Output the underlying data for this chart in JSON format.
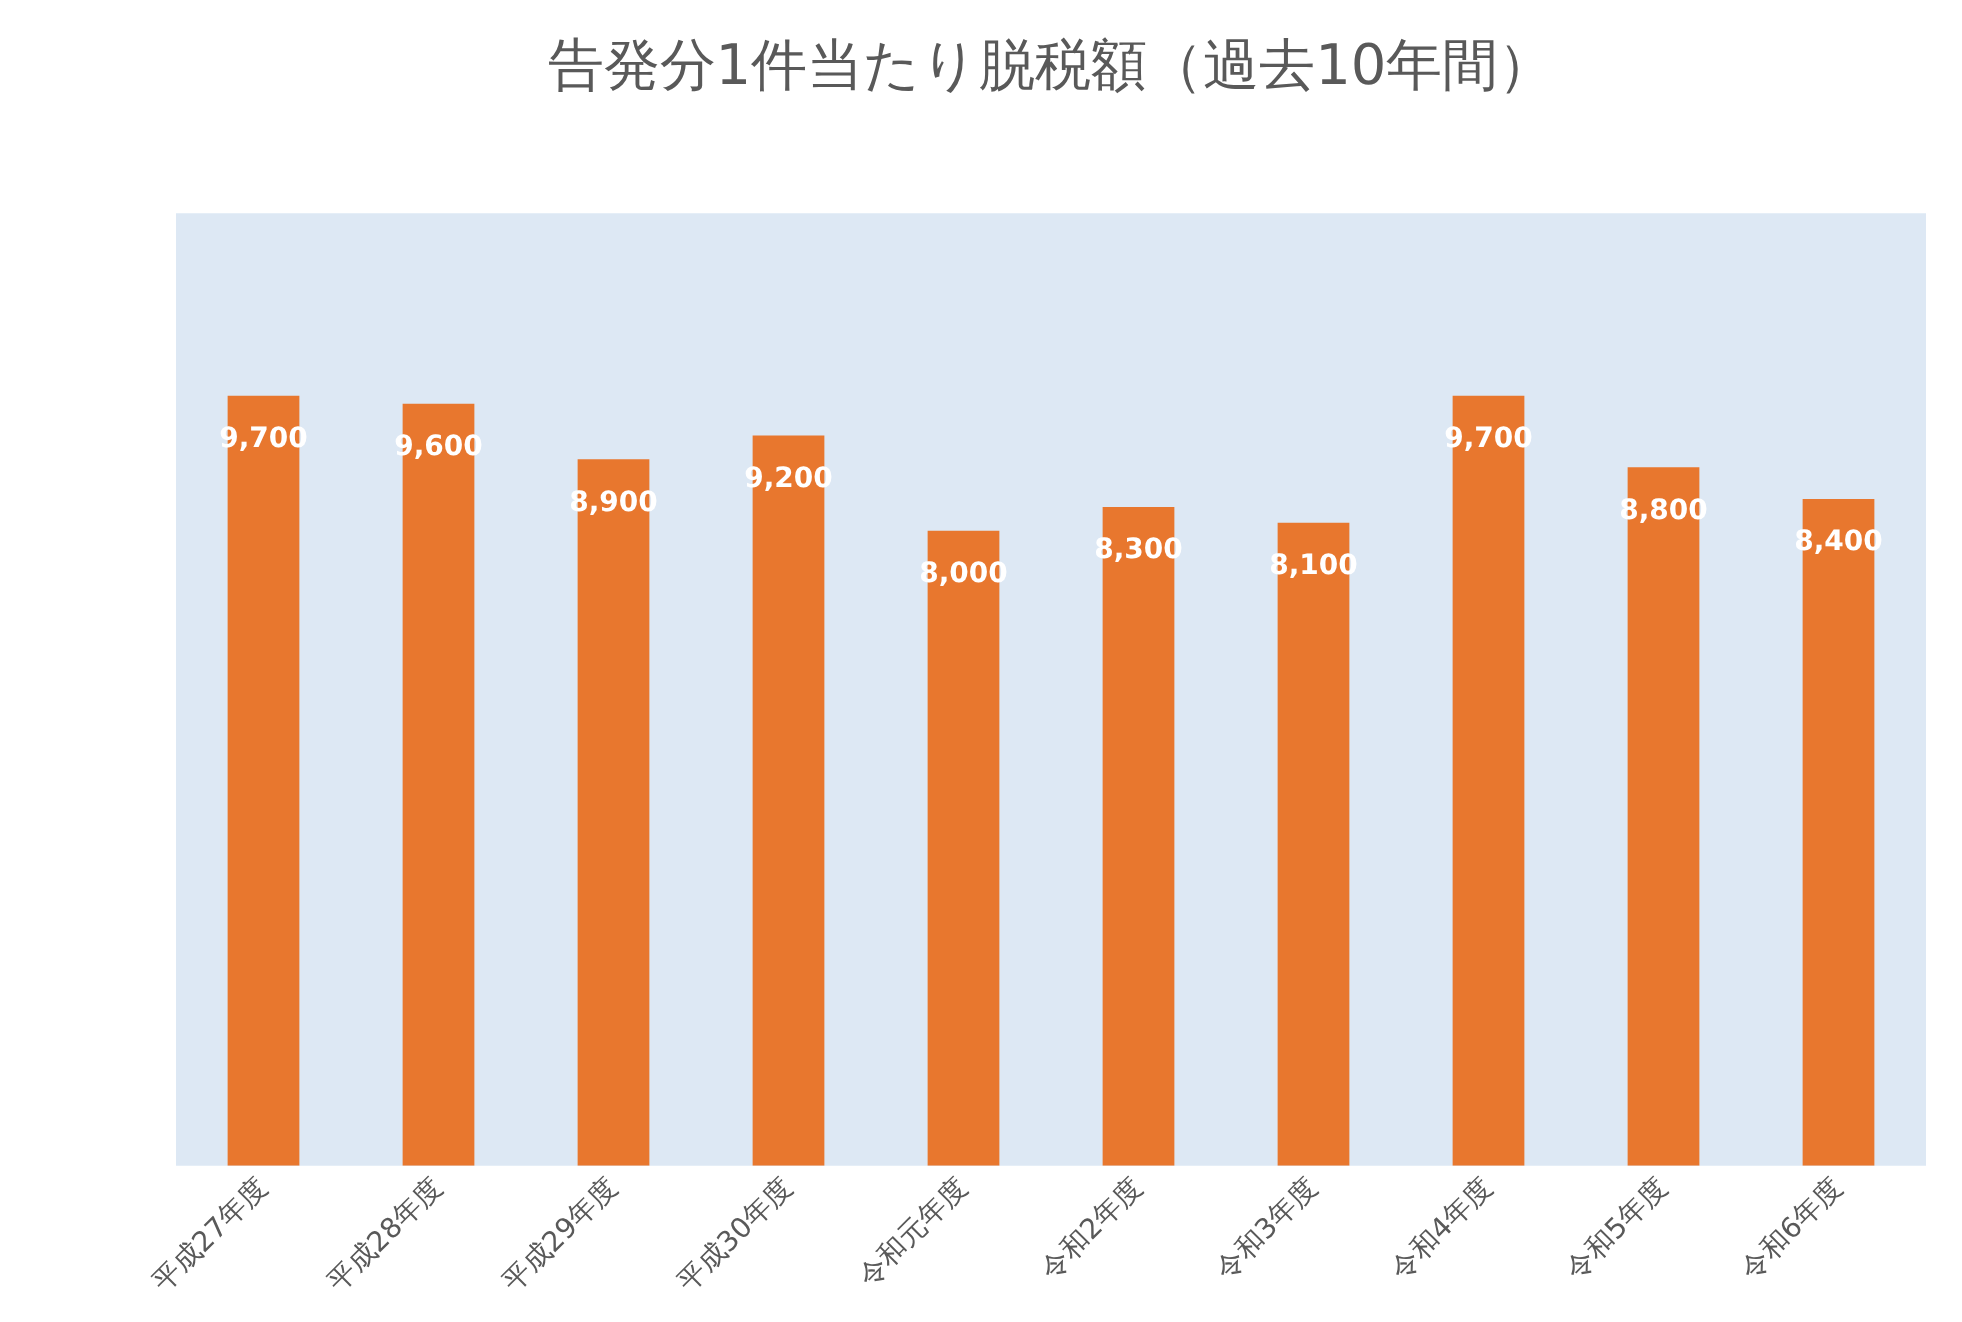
{
  "chart_data": {
    "type": "bar",
    "title": "告発分1件当たり脱税額（過去10年間）",
    "categories": [
      "平成27年度",
      "平成28年度",
      "平成29年度",
      "平成30年度",
      "令和元年度",
      "令和2年度",
      "令和3年度",
      "令和4年度",
      "令和5年度",
      "令和6年度"
    ],
    "values": [
      9700,
      9600,
      8900,
      9200,
      8000,
      8300,
      8100,
      9700,
      8800,
      8400
    ],
    "value_labels": [
      "9,700",
      "9,600",
      "8,900",
      "9,200",
      "8,000",
      "8,300",
      "8,100",
      "9,700",
      "8,800",
      "8,400"
    ],
    "color": "#e8772e",
    "grid": false,
    "legend": false,
    "tick_labels": "x"
  }
}
